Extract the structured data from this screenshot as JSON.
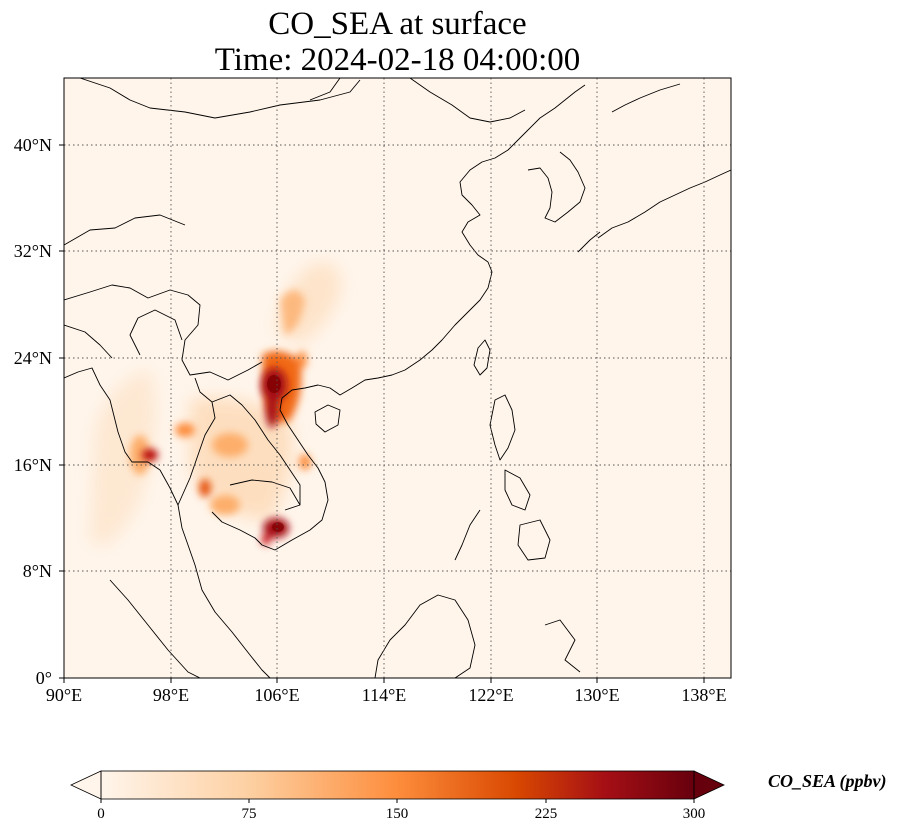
{
  "title": {
    "line1": "CO_SEA at surface",
    "line2": "Time: 2024-02-18 04:00:00"
  },
  "map": {
    "lon_range": [
      90,
      140
    ],
    "lat_range": [
      0,
      45
    ],
    "x_ticks": [
      "90°E",
      "98°E",
      "106°E",
      "114°E",
      "122°E",
      "130°E",
      "138°E"
    ],
    "x_tick_values": [
      90,
      98,
      106,
      114,
      122,
      130,
      138
    ],
    "y_ticks": [
      "0°",
      "8°N",
      "16°N",
      "24°N",
      "32°N",
      "40°N"
    ],
    "y_tick_values": [
      0,
      8,
      16,
      24,
      32,
      40
    ],
    "gridlines": true,
    "background_color": "#fff5eb"
  },
  "colorbar": {
    "label": "CO_SEA (ppbv)",
    "ticks": [
      "0",
      "75",
      "150",
      "225",
      "300"
    ],
    "tick_values": [
      0,
      75,
      150,
      225,
      300
    ],
    "range": [
      0,
      300
    ],
    "colormap": [
      "#fff5eb",
      "#fdd0a2",
      "#fd8d3c",
      "#d94801",
      "#a50f15",
      "#67000d"
    ],
    "extend": "both"
  }
}
